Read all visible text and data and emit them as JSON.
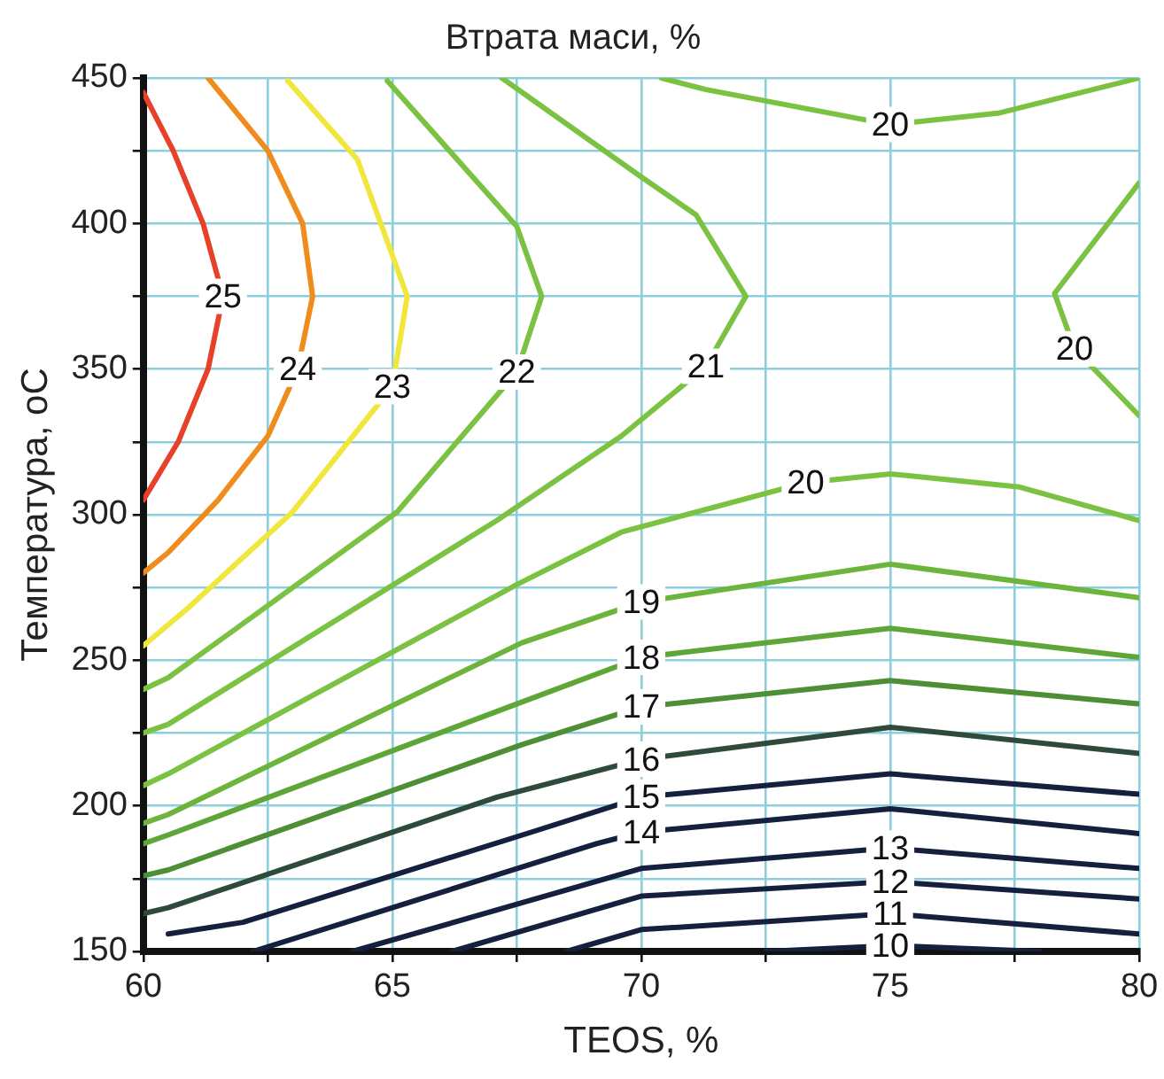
{
  "chart_data": {
    "type": "line",
    "title": "Втрата маси, %",
    "xlabel": "TEOS, %",
    "ylabel": "Температура, oC",
    "marker": "none",
    "line_style": "solid",
    "grid": true,
    "legend": false,
    "xlim": [
      60,
      80
    ],
    "ylim": [
      150,
      450
    ],
    "xticks": [
      60,
      {
        "value": 62.5,
        "label": null
      },
      65,
      {
        "value": 67.5,
        "label": null
      },
      70,
      {
        "value": 72.5,
        "label": null
      },
      75,
      {
        "value": 77.5,
        "label": null
      },
      80
    ],
    "yticks": [
      150,
      {
        "value": 175,
        "label": null
      },
      200,
      {
        "value": 225,
        "label": null
      },
      250,
      {
        "value": 275,
        "label": null
      },
      300,
      {
        "value": 325,
        "label": null
      },
      350,
      {
        "value": 375,
        "label": null
      },
      400,
      {
        "value": 425,
        "label": null
      },
      450
    ],
    "series": [
      {
        "name": "25",
        "color": "#e8412a",
        "x": [
          60,
          60.6,
          61.2,
          61.6,
          61.3,
          60.7,
          60
        ],
        "values": [
          445,
          425,
          400,
          375,
          350,
          325,
          305
        ]
      },
      {
        "name": "24",
        "color": "#f08c1e",
        "x": [
          61.3,
          62.5,
          63.2,
          63.4,
          63.1,
          62.5,
          61.5,
          60.5,
          60
        ],
        "values": [
          450,
          425,
          400,
          375,
          350,
          327,
          305,
          287,
          280
        ]
      },
      {
        "name": "23",
        "color": "#f0e63c",
        "x": [
          62.9,
          64.3,
          65.3,
          65,
          63,
          60.9,
          60
        ],
        "values": [
          449,
          422,
          375,
          344,
          301,
          268,
          255
        ]
      },
      {
        "name": "22",
        "color": "#7cc242",
        "x": [
          64.9,
          67.5,
          68,
          67.5,
          65.1,
          60.5,
          60
        ],
        "values": [
          449,
          399,
          375,
          349,
          301,
          244,
          240
        ]
      },
      {
        "name": "21",
        "color": "#7cc242",
        "x": [
          67.2,
          70,
          71.1,
          72.1,
          71.3,
          69.6,
          67.1,
          60.5,
          60
        ],
        "values": [
          450,
          416,
          403,
          375,
          351,
          327,
          298,
          228,
          225
        ]
      },
      {
        "name": "20",
        "color": "#7cc242",
        "x": [
          60,
          60.5,
          67.5,
          69.6,
          73.3,
          75,
          77.6,
          80
        ],
        "values": [
          207,
          211,
          276,
          294,
          311,
          314,
          309.5,
          298
        ]
      },
      {
        "name": "20",
        "color": "#7cc242",
        "x": [
          70.4,
          71.3,
          75,
          77.2,
          80
        ],
        "values": [
          450,
          446,
          434,
          438,
          450
        ]
      },
      {
        "name": "20",
        "color": "#7cc242",
        "x": [
          80,
          78.3,
          78.7,
          80
        ],
        "values": [
          414,
          376,
          357,
          334
        ]
      },
      {
        "name": "19",
        "color": "#6cb43c",
        "x": [
          60,
          60.5,
          67.6,
          70,
          75,
          77.6,
          80
        ],
        "values": [
          194,
          197,
          256,
          270,
          283,
          277,
          271.5
        ]
      },
      {
        "name": "18",
        "color": "#5ea638",
        "x": [
          60,
          60.5,
          67.5,
          70,
          75,
          80
        ],
        "values": [
          187,
          190,
          235,
          251,
          261,
          251
        ]
      },
      {
        "name": "17",
        "color": "#4e8e34",
        "x": [
          60,
          60.5,
          67.6,
          70,
          75,
          80
        ],
        "values": [
          176,
          178,
          221,
          234,
          243,
          235
        ]
      },
      {
        "name": "16",
        "color": "#2d4a3a",
        "x": [
          60,
          60.5,
          67.1,
          70,
          75,
          80
        ],
        "values": [
          163,
          165,
          203,
          216,
          227,
          218
        ]
      },
      {
        "name": "15",
        "color": "#14203e",
        "x": [
          60.5,
          62,
          67.8,
          70,
          75,
          80
        ],
        "values": [
          156,
          160,
          191,
          203,
          211,
          204
        ]
      },
      {
        "name": "14",
        "color": "#14203e",
        "x": [
          62.2,
          69.1,
          70,
          75,
          80
        ],
        "values": [
          150,
          187,
          191,
          199,
          190.5
        ]
      },
      {
        "name": "13",
        "color": "#14203e",
        "x": [
          64.2,
          70,
          75,
          80
        ],
        "values": [
          150,
          178.5,
          185.5,
          178.5
        ]
      },
      {
        "name": "12",
        "color": "#14203e",
        "x": [
          66.2,
          70,
          75,
          80
        ],
        "values": [
          150,
          169,
          174,
          168
        ]
      },
      {
        "name": "11",
        "color": "#14203e",
        "x": [
          68.5,
          70,
          75,
          80
        ],
        "values": [
          150,
          157.5,
          163,
          156
        ]
      },
      {
        "name": "10",
        "color": "#14203e",
        "x": [
          72.5,
          75,
          78
        ],
        "values": [
          150,
          152,
          150
        ]
      }
    ]
  }
}
